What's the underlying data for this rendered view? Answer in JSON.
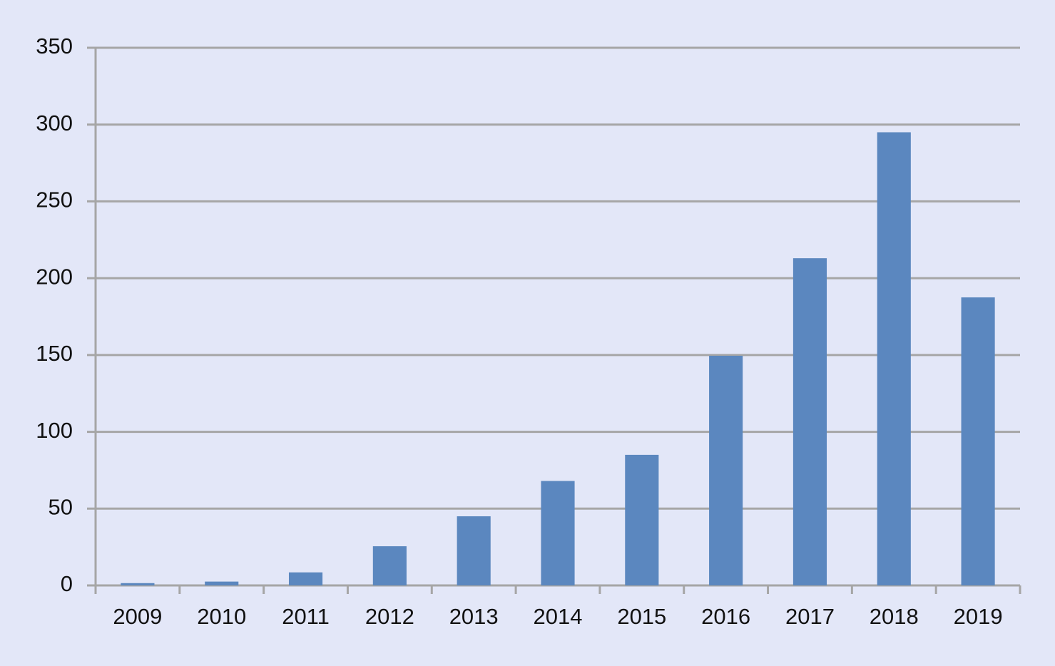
{
  "chart_data": {
    "type": "bar",
    "categories": [
      "2009",
      "2010",
      "2011",
      "2012",
      "2013",
      "2014",
      "2015",
      "2016",
      "2017",
      "2018",
      "2019"
    ],
    "values": [
      1.5,
      2.5,
      8.5,
      25.5,
      45,
      68,
      85,
      149.5,
      213,
      295,
      187.5
    ],
    "color": "#5b87bf",
    "ylim": [
      0,
      350
    ],
    "yticks": [
      0,
      50,
      100,
      150,
      200,
      250,
      300,
      350
    ],
    "grid": true
  }
}
